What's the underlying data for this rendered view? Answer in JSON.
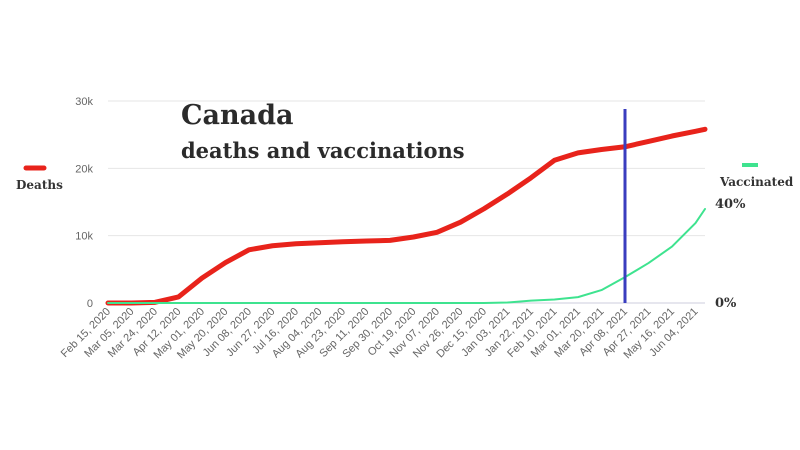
{
  "chart_data": {
    "type": "line",
    "title": "Canada",
    "subtitle": "deaths and vaccinations",
    "x": [
      "Feb 15, 2020",
      "Mar 05, 2020",
      "Mar 24, 2020",
      "Apr 12, 2020",
      "May 01, 2020",
      "May 20, 2020",
      "Jun 08, 2020",
      "Jun 27, 2020",
      "Jul 16, 2020",
      "Aug 04, 2020",
      "Aug 23, 2020",
      "Sep 11, 2020",
      "Sep 30, 2020",
      "Oct 19, 2020",
      "Nov 07, 2020",
      "Nov 26, 2020",
      "Dec 15, 2020",
      "Jan 03, 2021",
      "Jan 22, 2021",
      "Feb 10, 2021",
      "Mar 01, 2021",
      "Mar 20, 2021",
      "Apr 08, 2021",
      "Apr 27, 2021",
      "May 16, 2021",
      "Jun 04, 2021"
    ],
    "y_left": {
      "ticks": [
        "0",
        "10k",
        "20k",
        "30k"
      ],
      "ylim": [
        0,
        30000
      ]
    },
    "y_right": {
      "ticks": [
        "0%",
        "40%"
      ],
      "ylim": [
        0,
        40
      ]
    },
    "series": [
      {
        "name": "Deaths",
        "axis": "left",
        "color": "#e8231b",
        "values": [
          0,
          0,
          100,
          900,
          3700,
          6000,
          7900,
          8500,
          8800,
          8950,
          9100,
          9200,
          9300,
          9800,
          10500,
          12000,
          14000,
          16200,
          18600,
          21200,
          22300,
          22800,
          23200,
          24000,
          24800,
          25500
        ]
      },
      {
        "name": "Vaccinated",
        "axis": "right",
        "color": "#3ee38f",
        "values": [
          0,
          0,
          0,
          0,
          0,
          0,
          0,
          0,
          0,
          0,
          0,
          0,
          0,
          0,
          0,
          0,
          0,
          0.2,
          1,
          1.5,
          2.5,
          5.5,
          11,
          17,
          24,
          34
        ]
      }
    ],
    "end_values": {
      "Deaths": 25800,
      "Vaccinated": 40
    },
    "marker_line": {
      "date": "Apr 08, 2021",
      "color": "#3a3dbf"
    },
    "grid": true,
    "legend": [
      "Deaths (left)",
      "Vaccinated (right)"
    ]
  }
}
